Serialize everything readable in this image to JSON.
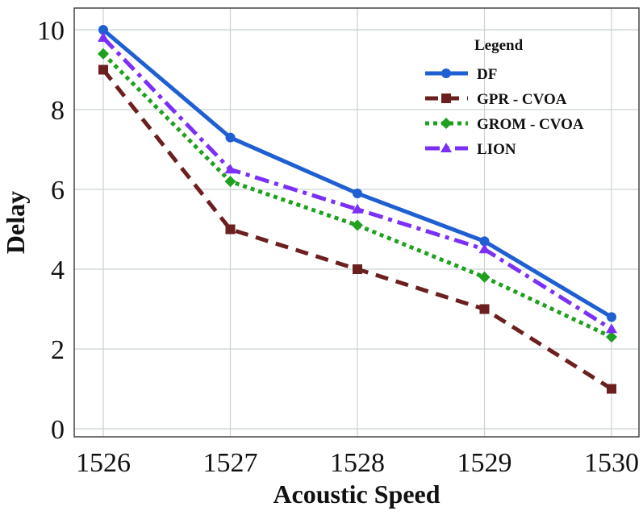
{
  "chart_data": {
    "type": "line",
    "title": "",
    "xlabel": "Acoustic Speed",
    "ylabel": "Delay",
    "x": [
      1526,
      1527,
      1528,
      1529,
      1530
    ],
    "xticks": [
      "1526",
      "1527",
      "1528",
      "1529",
      "1530"
    ],
    "yticks": [
      "0",
      "2",
      "4",
      "6",
      "8",
      "10"
    ],
    "ylim": [
      0,
      10.5
    ],
    "grid": true,
    "legend": {
      "title": "Legend",
      "position": "top-right"
    },
    "series": [
      {
        "name": "DF",
        "values": [
          10.0,
          7.3,
          5.9,
          4.7,
          2.8
        ],
        "color": "#1f5fd1",
        "dash": "solid",
        "marker": "circle"
      },
      {
        "name": "GPR - CVOA",
        "values": [
          9.0,
          5.0,
          4.0,
          3.0,
          1.0
        ],
        "color": "#6b1f1f",
        "dash": "dashed",
        "marker": "square"
      },
      {
        "name": "GROM - CVOA",
        "values": [
          9.4,
          6.2,
          5.1,
          3.8,
          2.3
        ],
        "color": "#1fa01f",
        "dash": "dotted",
        "marker": "diamond"
      },
      {
        "name": "LION",
        "values": [
          9.8,
          6.5,
          5.5,
          4.5,
          2.5
        ],
        "color": "#7b2ff7",
        "dash": "dashdot",
        "marker": "triangle"
      }
    ]
  }
}
